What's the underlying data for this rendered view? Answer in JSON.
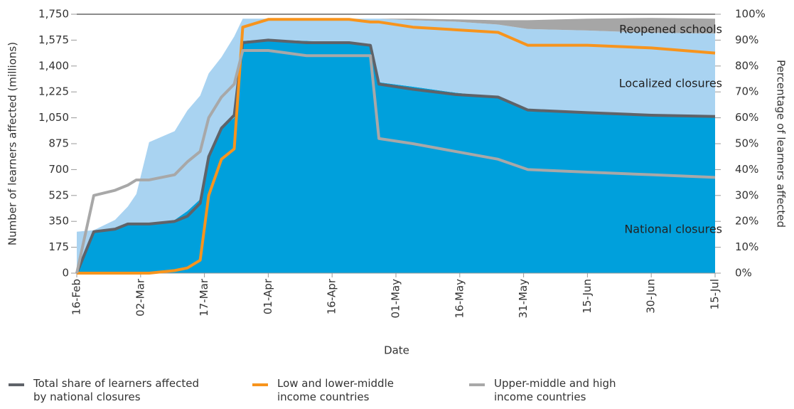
{
  "chart_data": {
    "type": "stacked-area-line",
    "x_label": "Date",
    "y_label": "Number of learners affected (millions)",
    "y2_label": "Percentage of learners affected",
    "x": [
      "16-Feb",
      "20-Feb",
      "25-Feb",
      "28-Feb",
      "01-Mar",
      "04-Mar",
      "10-Mar",
      "13-Mar",
      "16-Mar",
      "18-Mar",
      "21-Mar",
      "24-Mar",
      "26-Mar",
      "01-Apr",
      "10-Apr",
      "20-Apr",
      "25-Apr",
      "27-Apr",
      "05-May",
      "15-May",
      "25-May",
      "01-Jun",
      "15-Jun",
      "30-Jun",
      "15-Jul"
    ],
    "xticks": [
      "16-Feb",
      "02-Mar",
      "17-Mar",
      "01-Apr",
      "16-Apr",
      "01-May",
      "16-May",
      "31-May",
      "15-Jun",
      "30-Jun",
      "15-Jul"
    ],
    "ylim": [
      0,
      1750
    ],
    "yticks": [
      0,
      175,
      350,
      525,
      700,
      875,
      {
        "value": 1050,
        "label": "1,050"
      },
      {
        "value": 1225,
        "label": "1,225"
      },
      {
        "value": 1400,
        "label": "1,400"
      },
      {
        "value": 1575,
        "label": "1,575"
      },
      {
        "value": 1750,
        "label": "1,750"
      }
    ],
    "y2lim": [
      0,
      100
    ],
    "y2ticks": [
      {
        "value": 0,
        "label": "0%"
      },
      {
        "value": 10,
        "label": "10%"
      },
      {
        "value": 20,
        "label": "20%"
      },
      {
        "value": 30,
        "label": "30%"
      },
      {
        "value": 40,
        "label": "40%"
      },
      {
        "value": 50,
        "label": "50%"
      },
      {
        "value": 60,
        "label": "60%"
      },
      {
        "value": 70,
        "label": "70%"
      },
      {
        "value": 80,
        "label": "80%"
      },
      {
        "value": 90,
        "label": "90%"
      },
      {
        "value": 100,
        "label": "100%"
      }
    ],
    "series": [
      {
        "name": "National closures",
        "color": "#00a0dc",
        "stacked": true,
        "values": [
          0,
          280,
          300,
          330,
          335,
          335,
          360,
          420,
          500,
          800,
          980,
          1050,
          1570,
          1580,
          1570,
          1560,
          1550,
          1290,
          1260,
          1220,
          1190,
          1110,
          1080,
          1065,
          1060
        ]
      },
      {
        "name": "Localized closures",
        "color": "#a9d3f1",
        "stacked": true,
        "values": [
          280,
          10,
          60,
          120,
          200,
          550,
          600,
          680,
          700,
          550,
          480,
          550,
          150,
          140,
          150,
          160,
          170,
          430,
          450,
          480,
          490,
          540,
          560,
          560,
          560
        ]
      },
      {
        "name": "Reopened schools",
        "color": "#a6a6a6",
        "stacked": true,
        "values": [
          0,
          0,
          0,
          0,
          0,
          0,
          0,
          0,
          0,
          0,
          0,
          0,
          0,
          0,
          0,
          0,
          0,
          0,
          10,
          15,
          30,
          60,
          80,
          100,
          100
        ]
      },
      {
        "name": "Total share of learners affected by national closures",
        "color": "#5f6369",
        "axis": "y2",
        "values": [
          0,
          16,
          17,
          19,
          19,
          19,
          20,
          22,
          27,
          45,
          56,
          61,
          89,
          90,
          89,
          89,
          88,
          73,
          71,
          69,
          68,
          63,
          62,
          61,
          60.5
        ]
      },
      {
        "name": "Low and lower-middle income countries",
        "color": "#f7941d",
        "axis": "y2",
        "values": [
          0,
          0,
          0,
          0,
          0,
          0,
          1,
          2,
          5,
          30,
          44,
          48,
          95,
          98,
          98,
          98,
          97,
          97,
          95,
          94,
          93,
          88,
          88,
          87,
          85
        ]
      },
      {
        "name": "Upper-middle and high income countries",
        "color": "#a8a8a8",
        "axis": "y2",
        "values": [
          0,
          30,
          32,
          34,
          36,
          36,
          38,
          43,
          47,
          60,
          68,
          73,
          86,
          86,
          84,
          84,
          84,
          52,
          50,
          47,
          44,
          40,
          39,
          38,
          37
        ]
      }
    ]
  }
}
